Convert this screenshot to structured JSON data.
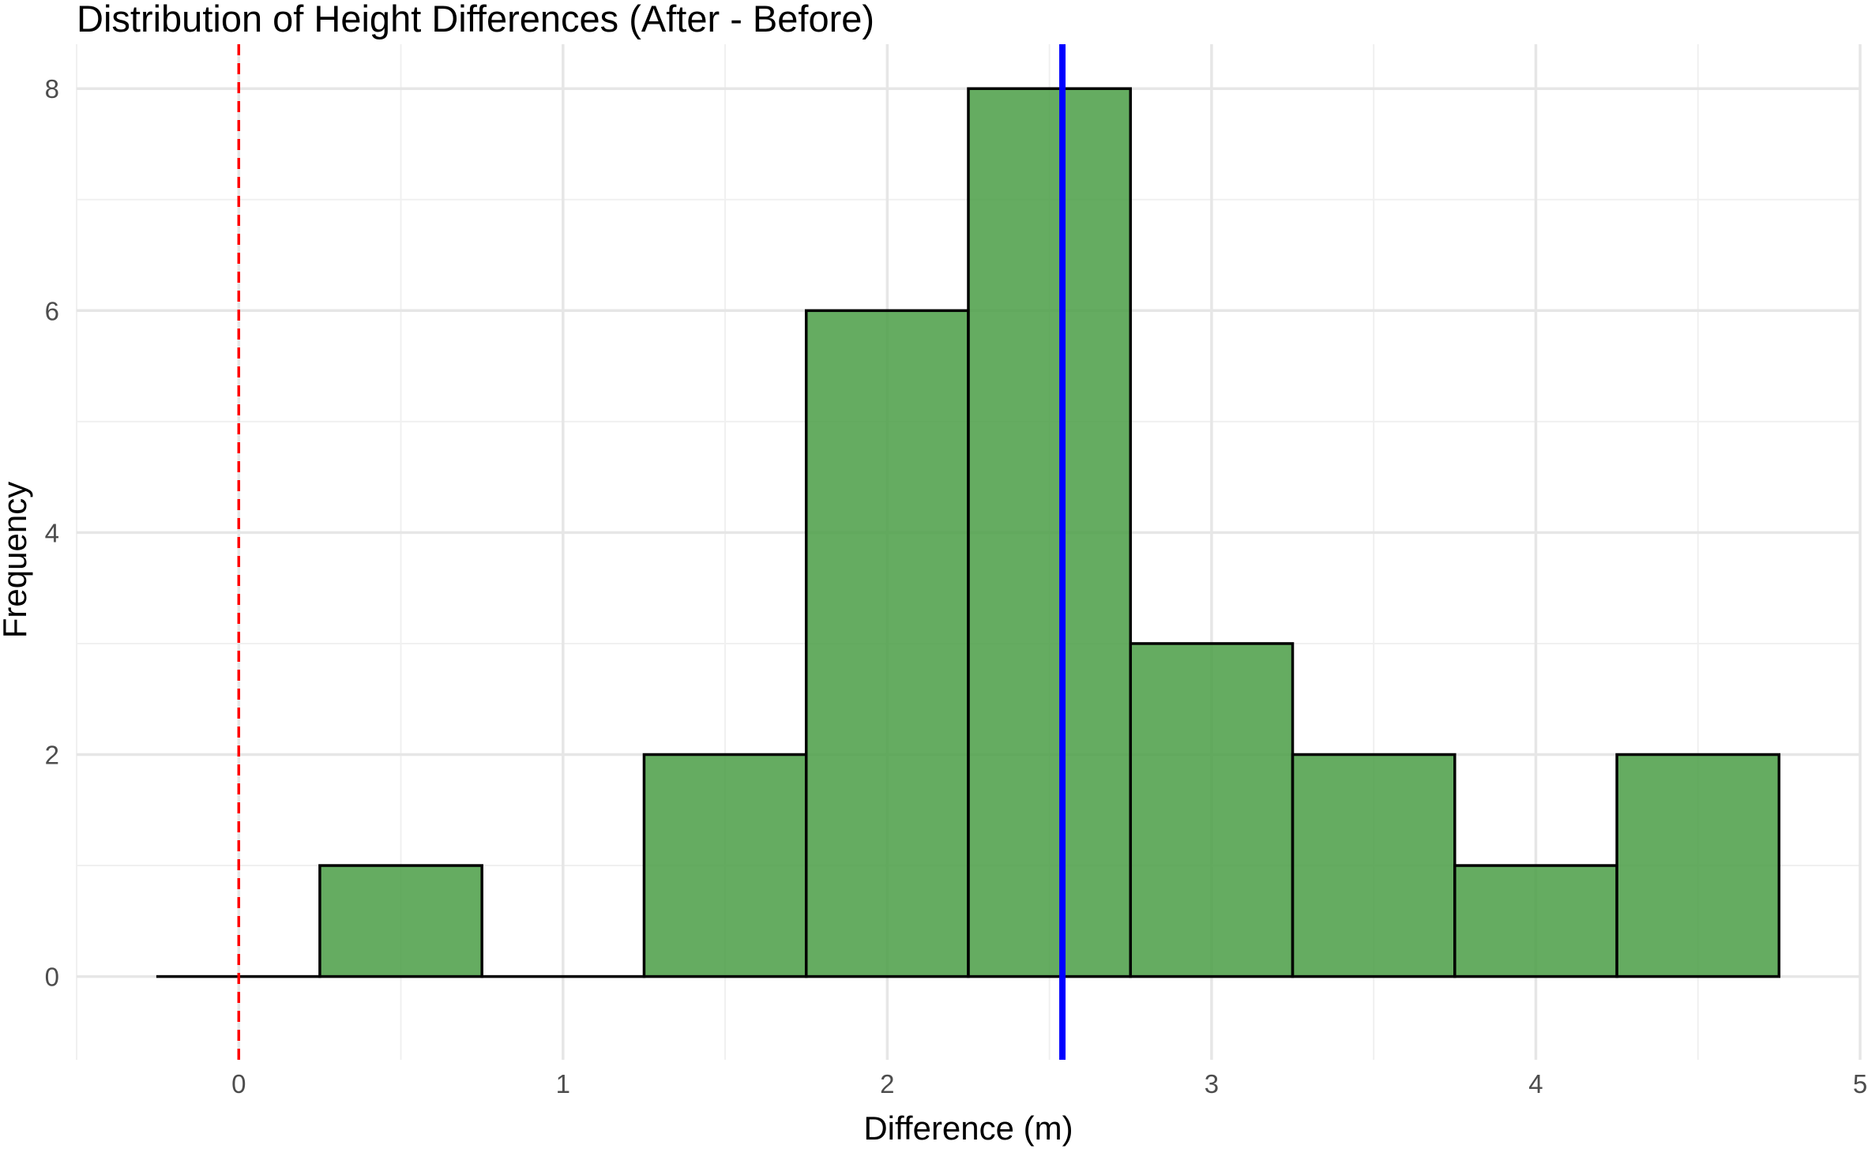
{
  "chart_data": {
    "type": "bar",
    "title": "Distribution of Height Differences (After - Before)",
    "xlabel": "Difference (m)",
    "ylabel": "Frequency",
    "bin_width": 0.5,
    "bins": [
      {
        "x0": -0.25,
        "x1": 0.25,
        "count": 0
      },
      {
        "x0": 0.25,
        "x1": 0.75,
        "count": 1
      },
      {
        "x0": 0.75,
        "x1": 1.25,
        "count": 0
      },
      {
        "x0": 1.25,
        "x1": 1.75,
        "count": 2
      },
      {
        "x0": 1.75,
        "x1": 2.25,
        "count": 6
      },
      {
        "x0": 2.25,
        "x1": 2.75,
        "count": 8
      },
      {
        "x0": 2.75,
        "x1": 3.25,
        "count": 3
      },
      {
        "x0": 3.25,
        "x1": 3.75,
        "count": 2
      },
      {
        "x0": 3.75,
        "x1": 4.25,
        "count": 1
      },
      {
        "x0": 4.25,
        "x1": 4.75,
        "count": 2
      }
    ],
    "xlim": [
      -0.5,
      5
    ],
    "ylim": [
      -0.75,
      8.4
    ],
    "x_ticks": [
      0,
      1,
      2,
      3,
      4,
      5
    ],
    "y_ticks": [
      0,
      2,
      4,
      6,
      8
    ],
    "reference_lines": [
      {
        "x": 0,
        "color": "#ff0000",
        "style": "dashed"
      },
      {
        "x": 2.54,
        "color": "#0000ff",
        "style": "solid"
      }
    ],
    "bar_fill": "#4a9e45",
    "bar_outline": "#000000",
    "grid": true,
    "legend": "none"
  }
}
